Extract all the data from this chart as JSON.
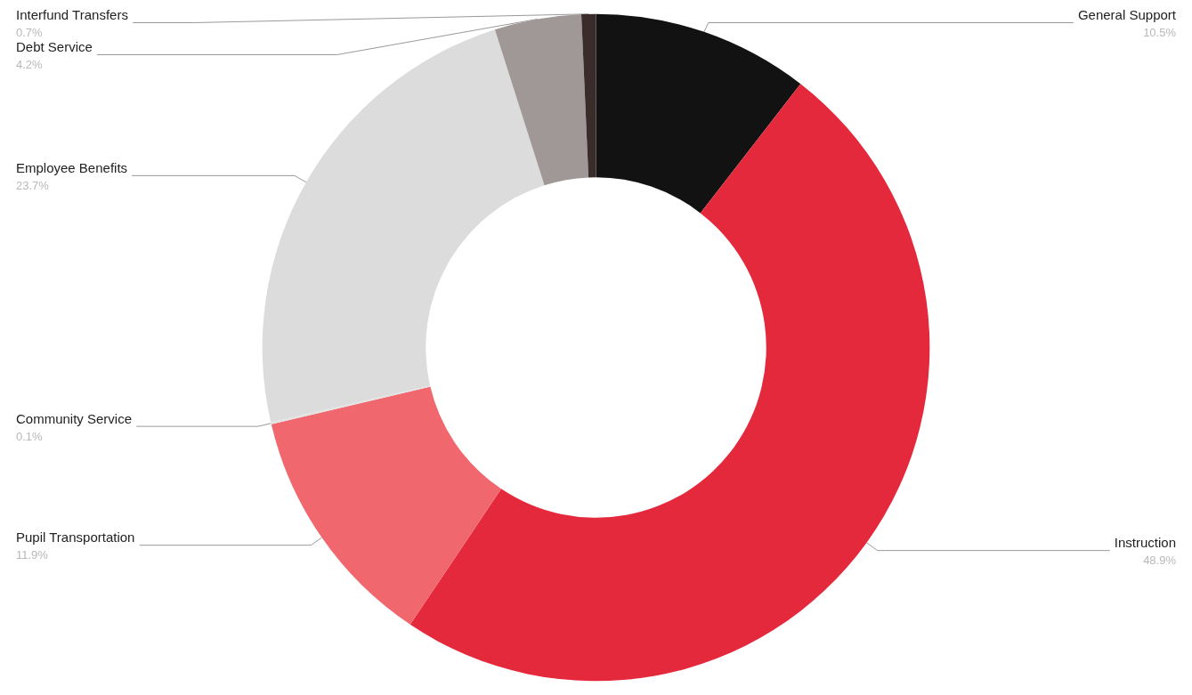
{
  "chart_data": {
    "type": "donut",
    "categories": [
      "General Support",
      "Instruction",
      "Pupil Transportation",
      "Community Service",
      "Employee Benefits",
      "Debt Service",
      "Interfund Transfers"
    ],
    "values": [
      10.5,
      48.9,
      11.9,
      0.1,
      23.7,
      4.2,
      0.7
    ],
    "value_labels": [
      "10.5%",
      "48.9%",
      "11.9%",
      "0.1%",
      "23.7%",
      "4.2%",
      "0.7%"
    ],
    "colors": [
      "#121212",
      "#e5293d",
      "#f0686e",
      "#e3e3e3",
      "#dcdcdc",
      "#a09897",
      "#3b2c2c"
    ],
    "legend": false
  }
}
